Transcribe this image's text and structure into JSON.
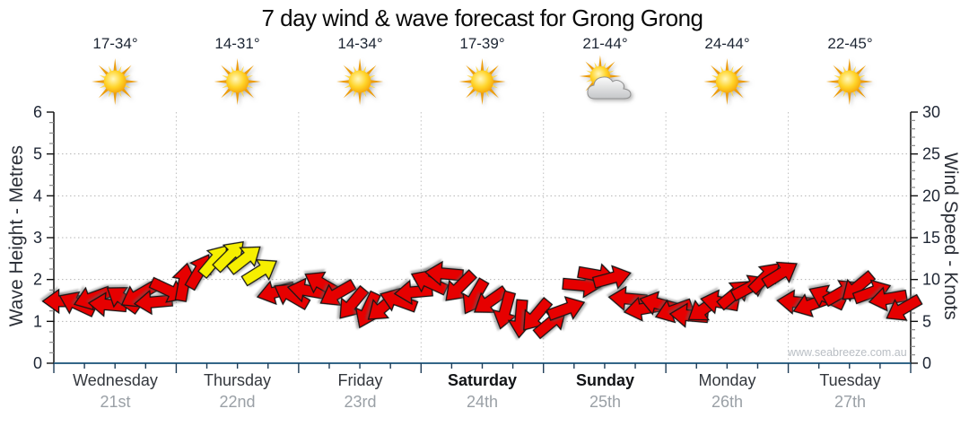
{
  "title": "7 day wind & wave forecast for Grong Grong",
  "watermark": "www.seabreeze.com.au",
  "chart_data": {
    "type": "wind-arrows",
    "title": "7 day wind & wave forecast for Grong Grong",
    "x_days": [
      {
        "name": "Wednesday",
        "date": "21st",
        "temp": "17-34°",
        "icon": "sun",
        "weekend": false
      },
      {
        "name": "Thursday",
        "date": "22nd",
        "temp": "14-31°",
        "icon": "sun",
        "weekend": false
      },
      {
        "name": "Friday",
        "date": "23rd",
        "temp": "14-34°",
        "icon": "sun",
        "weekend": false
      },
      {
        "name": "Saturday",
        "date": "24th",
        "temp": "17-39°",
        "icon": "sun",
        "weekend": true
      },
      {
        "name": "Sunday",
        "date": "25th",
        "temp": "21-44°",
        "icon": "sun-cloud",
        "weekend": true
      },
      {
        "name": "Monday",
        "date": "26th",
        "temp": "24-44°",
        "icon": "sun",
        "weekend": false
      },
      {
        "name": "Tuesday",
        "date": "27th",
        "temp": "22-45°",
        "icon": "sun",
        "weekend": false
      }
    ],
    "y_left": {
      "label": "Wave Height - Metres",
      "min": 0,
      "max": 6,
      "major_step": 1,
      "minor_step": 0.25
    },
    "y_right": {
      "label": "Wind Speed - Knots",
      "min": 0,
      "max": 30,
      "major_step": 5,
      "minor_step": 1
    },
    "grid": {
      "h_lines_metres": [
        1,
        2,
        3,
        4,
        5
      ],
      "v_lines": "day-boundaries",
      "style": "dotted"
    },
    "x_minor_ticks_per_day": 4,
    "series": {
      "name": "Wind speed & direction (3-hourly)",
      "units": {
        "t": "days from Wednesday 00:00",
        "speed": "knots",
        "dir": "degrees clockwise from east, negative = upward"
      },
      "points": [
        [
          0.063,
          7.4,
          180,
          "r"
        ],
        [
          0.188,
          7.1,
          205,
          "r"
        ],
        [
          0.313,
          7.8,
          160,
          "r"
        ],
        [
          0.438,
          7.0,
          185,
          "r"
        ],
        [
          0.563,
          7.7,
          215,
          "r"
        ],
        [
          0.688,
          8.1,
          150,
          "r"
        ],
        [
          0.813,
          7.3,
          175,
          "r"
        ],
        [
          0.938,
          8.7,
          25,
          "r"
        ],
        [
          1.063,
          9.7,
          -80,
          "r"
        ],
        [
          1.188,
          11.0,
          -60,
          "r"
        ],
        [
          1.313,
          12.3,
          -50,
          "y"
        ],
        [
          1.438,
          12.9,
          -45,
          "y"
        ],
        [
          1.563,
          12.5,
          -38,
          "y"
        ],
        [
          1.688,
          11.0,
          -32,
          "y"
        ],
        [
          1.813,
          8.5,
          165,
          "r"
        ],
        [
          1.938,
          8.1,
          -150,
          "r"
        ],
        [
          2.063,
          8.7,
          190,
          "r"
        ],
        [
          2.188,
          9.5,
          210,
          "r"
        ],
        [
          2.313,
          8.3,
          150,
          "r"
        ],
        [
          2.438,
          7.1,
          130,
          "r"
        ],
        [
          2.563,
          6.3,
          115,
          "r"
        ],
        [
          2.688,
          6.7,
          140,
          "r"
        ],
        [
          2.813,
          7.5,
          -160,
          "r"
        ],
        [
          2.938,
          8.5,
          175,
          "r"
        ],
        [
          3.063,
          9.7,
          205,
          "r"
        ],
        [
          3.188,
          10.7,
          185,
          "r"
        ],
        [
          3.313,
          9.1,
          135,
          "r"
        ],
        [
          3.438,
          7.9,
          120,
          "r"
        ],
        [
          3.563,
          7.4,
          145,
          "r"
        ],
        [
          3.688,
          6.3,
          105,
          "r"
        ],
        [
          3.813,
          5.3,
          95,
          "r"
        ],
        [
          3.938,
          5.7,
          130,
          "r"
        ],
        [
          4.063,
          4.9,
          -40,
          "r"
        ],
        [
          4.188,
          6.5,
          -20,
          "r"
        ],
        [
          4.313,
          9.3,
          5,
          "r"
        ],
        [
          4.438,
          10.5,
          10,
          "r"
        ],
        [
          4.563,
          10.2,
          -15,
          "r"
        ],
        [
          4.688,
          7.7,
          185,
          "r"
        ],
        [
          4.813,
          6.5,
          170,
          "r"
        ],
        [
          4.938,
          7.1,
          195,
          "r"
        ],
        [
          5.063,
          6.3,
          160,
          "r"
        ],
        [
          5.188,
          5.7,
          185,
          "r"
        ],
        [
          5.313,
          6.5,
          145,
          "r"
        ],
        [
          5.438,
          7.3,
          -170,
          "r"
        ],
        [
          5.563,
          8.3,
          -40,
          "r"
        ],
        [
          5.688,
          9.1,
          -28,
          "r"
        ],
        [
          5.813,
          10.3,
          -45,
          "r"
        ],
        [
          5.938,
          10.7,
          -32,
          "r"
        ],
        [
          6.063,
          7.3,
          185,
          "r"
        ],
        [
          6.188,
          7.0,
          160,
          "r"
        ],
        [
          6.313,
          7.9,
          205,
          "r"
        ],
        [
          6.438,
          8.5,
          -30,
          "r"
        ],
        [
          6.563,
          9.1,
          140,
          "r"
        ],
        [
          6.688,
          8.5,
          -20,
          "r"
        ],
        [
          6.813,
          7.7,
          170,
          "r"
        ],
        [
          6.938,
          6.5,
          150,
          "r"
        ]
      ]
    },
    "colors": {
      "arrow_red": "#e60000",
      "arrow_yellow": "#f6ef00",
      "arrow_outline": "#141414",
      "grid": "#b4b4b4",
      "bottom_axis": "#336688",
      "side_axis": "#111111",
      "tick_label": "#1d2533",
      "minor_tick": "#8a8a8a"
    }
  }
}
